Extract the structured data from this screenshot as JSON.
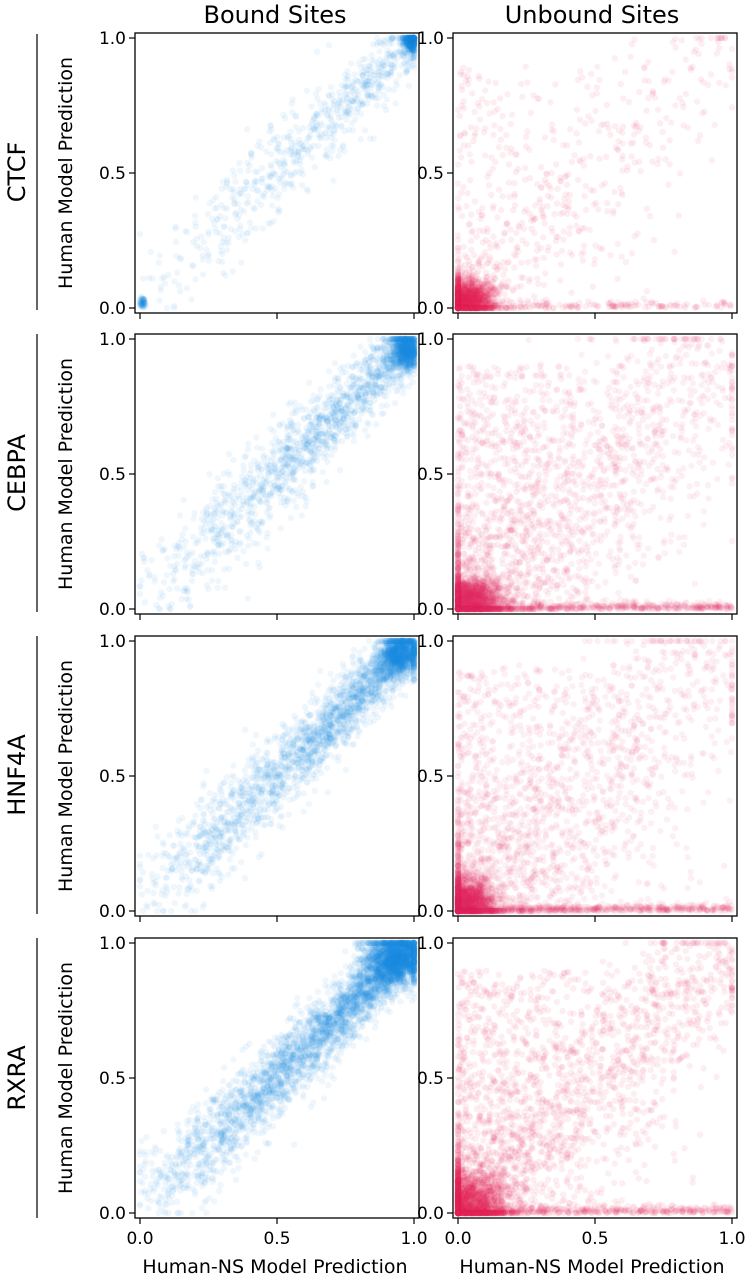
{
  "colors": {
    "bound": "#1e88e5",
    "unbound": "#e0245e"
  },
  "columns": [
    {
      "key": "bound",
      "title": "Bound Sites"
    },
    {
      "key": "unbound",
      "title": "Unbound Sites"
    }
  ],
  "rows": [
    {
      "label": "CTCF"
    },
    {
      "label": "CEBPA"
    },
    {
      "label": "HNF4A"
    },
    {
      "label": "RXRA"
    }
  ],
  "ylabel": "Human Model Prediction",
  "xlabel": "Human-NS Model Prediction",
  "ticks": {
    "values": [
      0,
      0.5,
      1
    ],
    "labels": [
      "0.0",
      "0.5",
      "1.0"
    ]
  },
  "chart_data": {
    "type": "scatter",
    "layout": "4 rows x 2 columns grid of scatter panels",
    "xlabel": "Human-NS Model Prediction",
    "ylabel": "Human Model Prediction",
    "xlim": [
      0,
      1
    ],
    "ylim": [
      0,
      1
    ],
    "grid": false,
    "panels": [
      {
        "row": "CTCF",
        "column": "Bound Sites",
        "clusters": [
          {
            "description": "dense",
            "x": 0.99,
            "y": 0.99,
            "spread": 0.02
          },
          {
            "description": "small",
            "x": 0.01,
            "y": 0.02,
            "spread": 0.01
          }
        ],
        "diagonal_correlation": "high, sparse"
      },
      {
        "row": "CTCF",
        "column": "Unbound Sites",
        "clusters": [
          {
            "description": "dense",
            "x": 0.03,
            "y": 0.03,
            "spread": 0.06
          }
        ],
        "diagonal_correlation": "moderate, sparse"
      },
      {
        "row": "CEBPA",
        "column": "Bound Sites",
        "clusters": [
          {
            "description": "dense",
            "x": 0.97,
            "y": 0.96,
            "spread": 0.04
          }
        ],
        "diagonal_correlation": "high"
      },
      {
        "row": "CEBPA",
        "column": "Unbound Sites",
        "clusters": [
          {
            "description": "dense",
            "x": 0.04,
            "y": 0.03,
            "spread": 0.07
          },
          {
            "description": "band along y=0.02",
            "x": 0.5,
            "y": 0.02,
            "spread": 0.3
          }
        ],
        "diagonal_correlation": "moderate"
      },
      {
        "row": "HNF4A",
        "column": "Bound Sites",
        "clusters": [
          {
            "description": "dense",
            "x": 0.95,
            "y": 0.95,
            "spread": 0.05
          }
        ],
        "diagonal_correlation": "high"
      },
      {
        "row": "HNF4A",
        "column": "Unbound Sites",
        "clusters": [
          {
            "description": "dense",
            "x": 0.03,
            "y": 0.03,
            "spread": 0.06
          },
          {
            "description": "band along y=0.01",
            "x": 0.5,
            "y": 0.01,
            "spread": 0.3
          }
        ],
        "diagonal_correlation": "moderate"
      },
      {
        "row": "RXRA",
        "column": "Bound Sites",
        "clusters": [
          {
            "description": "dense",
            "x": 0.93,
            "y": 0.94,
            "spread": 0.08
          }
        ],
        "diagonal_correlation": "high, dense"
      },
      {
        "row": "RXRA",
        "column": "Unbound Sites",
        "clusters": [
          {
            "description": "dense",
            "x": 0.04,
            "y": 0.04,
            "spread": 0.08
          },
          {
            "description": "band along y=0.02",
            "x": 0.5,
            "y": 0.02,
            "spread": 0.3
          }
        ],
        "diagonal_correlation": "moderate"
      }
    ]
  }
}
